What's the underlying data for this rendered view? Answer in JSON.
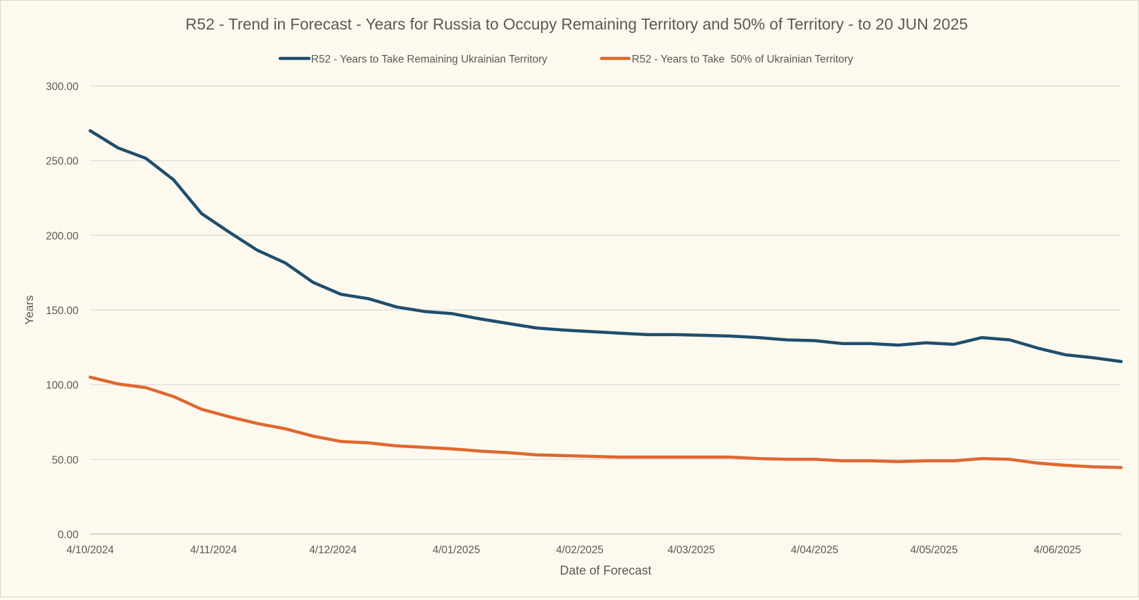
{
  "chart_data": {
    "type": "line",
    "title": "R52 - Trend in Forecast - Years for Russia to Occupy Remaining Territory and 50% of Territory - to 20 JUN 2025",
    "xlabel": "Date of Forecast",
    "ylabel": "Years",
    "ylim": [
      0,
      300
    ],
    "yticks": [
      "0.00",
      "50.00",
      "100.00",
      "150.00",
      "200.00",
      "250.00",
      "300.00"
    ],
    "xticks": [
      {
        "label": "4/10/2024",
        "date": "2024-10-04"
      },
      {
        "label": "4/11/2024",
        "date": "2024-11-04"
      },
      {
        "label": "4/12/2024",
        "date": "2024-12-04"
      },
      {
        "label": "4/01/2025",
        "date": "2025-01-04"
      },
      {
        "label": "4/02/2025",
        "date": "2025-02-04"
      },
      {
        "label": "4/03/2025",
        "date": "2025-03-04"
      },
      {
        "label": "4/04/2025",
        "date": "2025-04-04"
      },
      {
        "label": "4/05/2025",
        "date": "2025-05-04"
      },
      {
        "label": "4/06/2025",
        "date": "2025-06-04"
      }
    ],
    "xlim": [
      "2024-10-04",
      "2025-06-20"
    ],
    "x": [
      "2024-10-04",
      "2024-10-11",
      "2024-10-18",
      "2024-10-25",
      "2024-11-01",
      "2024-11-08",
      "2024-11-15",
      "2024-11-22",
      "2024-11-29",
      "2024-12-06",
      "2024-12-13",
      "2024-12-20",
      "2024-12-27",
      "2025-01-03",
      "2025-01-10",
      "2025-01-17",
      "2025-01-24",
      "2025-01-31",
      "2025-02-07",
      "2025-02-14",
      "2025-02-21",
      "2025-02-28",
      "2025-03-07",
      "2025-03-14",
      "2025-03-21",
      "2025-03-28",
      "2025-04-04",
      "2025-04-11",
      "2025-04-18",
      "2025-04-25",
      "2025-05-02",
      "2025-05-09",
      "2025-05-16",
      "2025-05-23",
      "2025-05-30",
      "2025-06-06",
      "2025-06-13",
      "2025-06-20"
    ],
    "series": [
      {
        "name": "R52 - Years to Take Remaining Ukrainian Territory",
        "color": "#1f4e6e",
        "values": [
          270,
          258.5,
          251.5,
          237,
          214.5,
          202,
          190,
          181.5,
          168.5,
          160.5,
          157.5,
          152,
          149,
          147.5,
          144,
          141,
          138,
          136.5,
          135.5,
          134.5,
          133.5,
          133.5,
          133,
          132.5,
          131.5,
          130,
          129.5,
          127.5,
          127.5,
          126.5,
          128,
          127,
          131.5,
          130,
          124.5,
          120,
          118,
          115.5
        ]
      },
      {
        "name": "R52 - Years to Take  50% of Ukrainian Territory",
        "color": "#e0672f",
        "values": [
          105,
          100.5,
          98,
          92,
          83.5,
          78.5,
          74,
          70.5,
          65.5,
          62,
          61,
          59,
          58,
          57,
          55.5,
          54.5,
          53,
          52.5,
          52,
          51.5,
          51.5,
          51.5,
          51.5,
          51.5,
          50.5,
          50,
          50,
          49,
          49,
          48.5,
          49,
          49,
          50.5,
          50,
          47.5,
          46,
          45,
          44.5
        ]
      }
    ],
    "grid": "horizontal",
    "legend_position": "top"
  }
}
